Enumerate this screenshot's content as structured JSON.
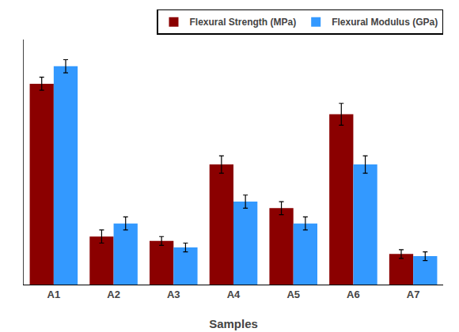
{
  "chart_data": {
    "type": "bar",
    "categories": [
      "A1",
      "A2",
      "A3",
      "A4",
      "A5",
      "A6",
      "A7"
    ],
    "series": [
      {
        "name": "Flexural Strength (MPa)",
        "color": "#8B0000",
        "values": [
          92,
          22,
          20,
          55,
          35,
          78,
          14
        ],
        "errors": [
          3,
          3,
          2,
          4,
          3,
          5,
          2
        ]
      },
      {
        "name": "Flexural Modulus (GPa)",
        "color": "#3399FF",
        "values": [
          100,
          28,
          17,
          38,
          28,
          55,
          13
        ],
        "errors": [
          3,
          3,
          2,
          3,
          3,
          4,
          2
        ]
      }
    ],
    "xlabel": "Samples",
    "ylim": [
      0,
      112.24
    ],
    "tick_labels": "x",
    "grid": false,
    "legend": "upper right"
  }
}
